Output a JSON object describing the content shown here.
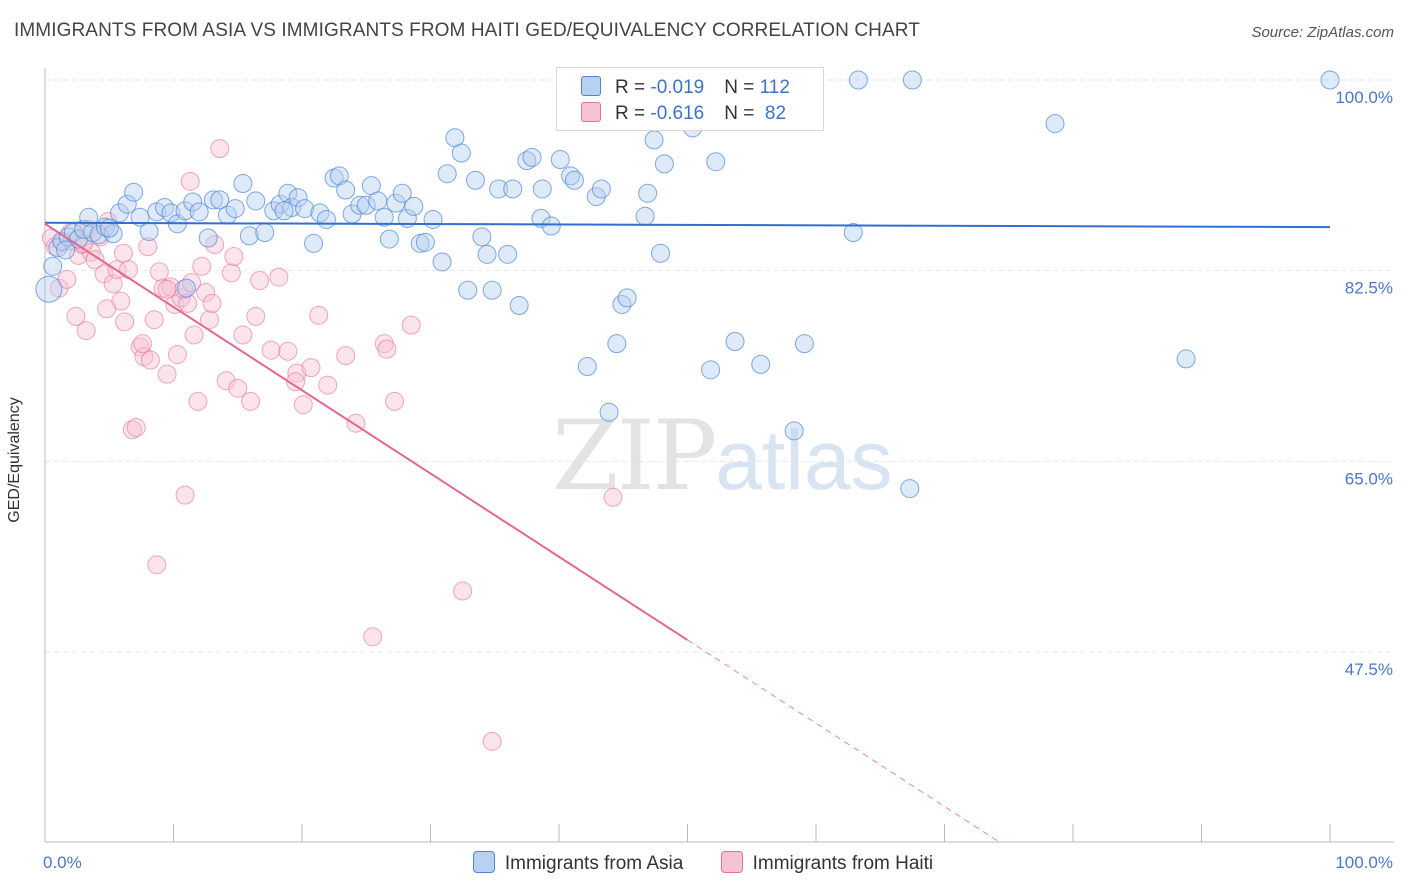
{
  "title": "IMMIGRANTS FROM ASIA VS IMMIGRANTS FROM HAITI GED/EQUIVALENCY CORRELATION CHART",
  "source": "Source: ZipAtlas.com",
  "watermark": {
    "zip": "ZIP",
    "atlas": "atlas"
  },
  "colors": {
    "asia": "#4a86d8",
    "asia_fill": "#b9d1f0",
    "haiti": "#e8709a",
    "haiti_fill": "#f6c3d4",
    "tick": "#4a77c8",
    "grid": "#e6e6e6"
  },
  "legend": {
    "asia": {
      "r_label": "R = ",
      "r_value": "-0.019",
      "n_label": "N = ",
      "n_value": "112"
    },
    "haiti": {
      "r_label": "R = ",
      "r_value": "-0.616",
      "n_label": "N = ",
      "n_value": " 82"
    }
  },
  "chart_data": {
    "type": "scatter",
    "title": "IMMIGRANTS FROM ASIA VS IMMIGRANTS FROM HAITI GED/EQUIVALENCY CORRELATION CHART",
    "xlabel": "",
    "ylabel": "GED/Equivalency",
    "xlim": [
      0,
      100
    ],
    "ylim": [
      32,
      102
    ],
    "x_tick_labels": [
      "0.0%",
      "100.0%"
    ],
    "y_ticks": [
      47.5,
      65.0,
      82.5,
      100.0
    ],
    "y_tick_labels": [
      "47.5%",
      "65.0%",
      "82.5%",
      "100.0%"
    ],
    "grid": "horizontal dashed",
    "legend_placement": "bottom",
    "series": [
      {
        "name": "Immigrants from Asia",
        "trend": {
          "x0": 0,
          "y0": 86.9,
          "x1": 100,
          "y1": 86.5,
          "dashed_from": null
        },
        "points": [
          [
            0.3,
            80.8
          ],
          [
            0.6,
            82.9
          ],
          [
            1.0,
            84.6
          ],
          [
            1.3,
            85.2
          ],
          [
            1.8,
            85.6
          ],
          [
            2.2,
            86.0
          ],
          [
            2.6,
            85.4
          ],
          [
            3.0,
            86.3
          ],
          [
            3.4,
            87.4
          ],
          [
            3.7,
            86.0
          ],
          [
            4.2,
            85.8
          ],
          [
            4.7,
            86.5
          ],
          [
            5.3,
            85.9
          ],
          [
            5.8,
            87.8
          ],
          [
            6.4,
            88.6
          ],
          [
            6.9,
            89.7
          ],
          [
            7.4,
            87.4
          ],
          [
            8.1,
            86.1
          ],
          [
            8.7,
            87.9
          ],
          [
            9.3,
            88.3
          ],
          [
            9.8,
            87.8
          ],
          [
            10.3,
            86.8
          ],
          [
            10.9,
            88.0
          ],
          [
            11.5,
            88.8
          ],
          [
            12.0,
            87.9
          ],
          [
            12.7,
            85.5
          ],
          [
            13.1,
            89.0
          ],
          [
            13.6,
            89.0
          ],
          [
            14.2,
            87.6
          ],
          [
            14.8,
            88.2
          ],
          [
            15.4,
            90.5
          ],
          [
            15.9,
            85.7
          ],
          [
            16.4,
            88.9
          ],
          [
            17.1,
            86.0
          ],
          [
            17.8,
            88.0
          ],
          [
            18.3,
            88.6
          ],
          [
            18.9,
            89.6
          ],
          [
            19.2,
            88.3
          ],
          [
            19.7,
            89.2
          ],
          [
            20.2,
            88.2
          ],
          [
            20.9,
            85.0
          ],
          [
            21.4,
            87.8
          ],
          [
            21.9,
            87.2
          ],
          [
            22.5,
            91.0
          ],
          [
            22.9,
            91.2
          ],
          [
            23.4,
            89.9
          ],
          [
            23.9,
            87.7
          ],
          [
            24.5,
            88.5
          ],
          [
            25.0,
            88.5
          ],
          [
            25.4,
            90.3
          ],
          [
            25.9,
            88.9
          ],
          [
            26.4,
            87.4
          ],
          [
            26.8,
            85.4
          ],
          [
            27.3,
            88.7
          ],
          [
            27.8,
            89.6
          ],
          [
            28.2,
            87.3
          ],
          [
            28.7,
            88.4
          ],
          [
            29.2,
            85.0
          ],
          [
            29.6,
            85.1
          ],
          [
            30.2,
            87.2
          ],
          [
            30.9,
            83.3
          ],
          [
            31.3,
            91.4
          ],
          [
            31.9,
            94.7
          ],
          [
            32.4,
            93.3
          ],
          [
            32.9,
            80.7
          ],
          [
            33.5,
            90.8
          ],
          [
            34.0,
            85.6
          ],
          [
            34.4,
            84.0
          ],
          [
            34.8,
            80.7
          ],
          [
            35.3,
            90.0
          ],
          [
            36.0,
            84.0
          ],
          [
            36.4,
            90.0
          ],
          [
            36.9,
            79.3
          ],
          [
            37.5,
            92.6
          ],
          [
            37.9,
            92.9
          ],
          [
            38.6,
            87.3
          ],
          [
            38.7,
            90.0
          ],
          [
            39.4,
            86.6
          ],
          [
            40.1,
            92.7
          ],
          [
            40.9,
            91.2
          ],
          [
            41.2,
            90.8
          ],
          [
            42.2,
            73.7
          ],
          [
            42.9,
            89.3
          ],
          [
            43.3,
            90.0
          ],
          [
            43.9,
            69.5
          ],
          [
            44.5,
            75.8
          ],
          [
            44.9,
            79.4
          ],
          [
            45.3,
            80.0
          ],
          [
            45.8,
            96.6
          ],
          [
            46.7,
            87.5
          ],
          [
            46.9,
            89.6
          ],
          [
            47.4,
            94.5
          ],
          [
            47.9,
            84.1
          ],
          [
            48.2,
            92.3
          ],
          [
            50.4,
            95.6
          ],
          [
            50.8,
            97.2
          ],
          [
            51.8,
            73.4
          ],
          [
            52.2,
            92.5
          ],
          [
            53.7,
            76.0
          ],
          [
            55.7,
            73.9
          ],
          [
            58.3,
            67.8
          ],
          [
            59.1,
            75.8
          ],
          [
            62.9,
            86.0
          ],
          [
            63.3,
            100.0
          ],
          [
            67.3,
            62.5
          ],
          [
            67.5,
            100.0
          ],
          [
            78.6,
            96.0
          ],
          [
            88.8,
            74.4
          ],
          [
            100.0,
            100.0
          ],
          [
            52.8,
            98.6
          ],
          [
            46.3,
            97.7
          ],
          [
            1.6,
            84.4
          ],
          [
            5.0,
            86.4
          ],
          [
            11.0,
            80.9
          ],
          [
            18.6,
            88.0
          ]
        ]
      },
      {
        "name": "Immigrants from Haiti",
        "trend": {
          "x0": 0,
          "y0": 86.8,
          "x1": 100,
          "y1": 10.4,
          "dashed_from": 50
        },
        "points": [
          [
            0.5,
            85.5
          ],
          [
            0.8,
            84.7
          ],
          [
            1.1,
            80.9
          ],
          [
            1.4,
            85.1
          ],
          [
            1.7,
            81.7
          ],
          [
            2.1,
            85.2
          ],
          [
            2.4,
            78.3
          ],
          [
            2.6,
            83.9
          ],
          [
            2.9,
            84.9
          ],
          [
            3.2,
            77.0
          ],
          [
            3.4,
            86.3
          ],
          [
            3.6,
            84.2
          ],
          [
            3.9,
            83.5
          ],
          [
            4.3,
            85.6
          ],
          [
            4.6,
            82.2
          ],
          [
            4.9,
            87.0
          ],
          [
            5.3,
            81.3
          ],
          [
            5.6,
            82.6
          ],
          [
            5.9,
            79.7
          ],
          [
            6.2,
            77.8
          ],
          [
            6.5,
            82.6
          ],
          [
            6.8,
            67.9
          ],
          [
            7.1,
            68.1
          ],
          [
            7.4,
            75.5
          ],
          [
            7.7,
            74.6
          ],
          [
            8.0,
            84.7
          ],
          [
            8.2,
            74.3
          ],
          [
            8.5,
            78.0
          ],
          [
            8.7,
            55.5
          ],
          [
            8.9,
            82.4
          ],
          [
            9.2,
            80.9
          ],
          [
            9.5,
            73.0
          ],
          [
            9.8,
            81.0
          ],
          [
            10.1,
            79.4
          ],
          [
            10.3,
            74.8
          ],
          [
            10.6,
            80.0
          ],
          [
            10.9,
            61.9
          ],
          [
            11.1,
            79.5
          ],
          [
            11.3,
            90.7
          ],
          [
            11.6,
            76.6
          ],
          [
            11.9,
            70.5
          ],
          [
            12.2,
            82.9
          ],
          [
            12.5,
            80.5
          ],
          [
            12.8,
            78.0
          ],
          [
            13.2,
            84.9
          ],
          [
            13.6,
            93.7
          ],
          [
            14.1,
            72.4
          ],
          [
            14.5,
            82.3
          ],
          [
            15.0,
            71.7
          ],
          [
            15.4,
            76.6
          ],
          [
            16.0,
            70.5
          ],
          [
            16.4,
            78.3
          ],
          [
            16.7,
            81.6
          ],
          [
            17.6,
            75.2
          ],
          [
            18.2,
            81.9
          ],
          [
            18.9,
            75.1
          ],
          [
            19.6,
            73.1
          ],
          [
            20.1,
            70.2
          ],
          [
            20.7,
            73.6
          ],
          [
            21.3,
            78.4
          ],
          [
            23.4,
            74.7
          ],
          [
            24.2,
            68.5
          ],
          [
            25.5,
            48.9
          ],
          [
            26.4,
            75.8
          ],
          [
            26.6,
            75.3
          ],
          [
            27.2,
            70.5
          ],
          [
            28.5,
            77.5
          ],
          [
            32.5,
            53.1
          ],
          [
            34.8,
            39.3
          ],
          [
            44.2,
            61.7
          ],
          [
            13.0,
            79.5
          ],
          [
            9.5,
            80.8
          ],
          [
            14.7,
            83.8
          ],
          [
            6.1,
            84.1
          ],
          [
            10.8,
            80.8
          ],
          [
            19.5,
            72.3
          ],
          [
            3.0,
            85.0
          ],
          [
            11.4,
            81.4
          ],
          [
            7.6,
            75.8
          ],
          [
            4.8,
            79.0
          ],
          [
            22.0,
            72.0
          ],
          [
            2.0,
            86.0
          ]
        ]
      }
    ]
  },
  "bottom_legend": [
    {
      "label": "Immigrants from Asia"
    },
    {
      "label": "Immigrants from Haiti"
    }
  ]
}
